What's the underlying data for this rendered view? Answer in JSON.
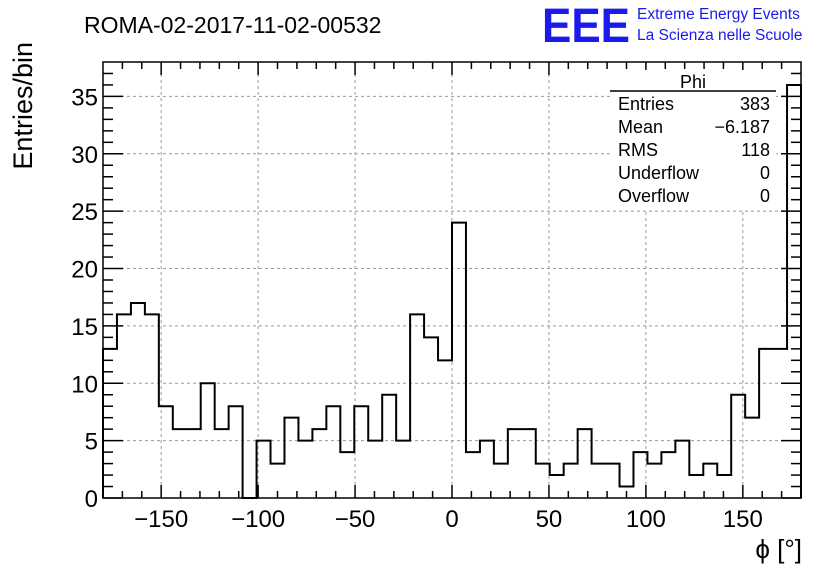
{
  "chart_data": {
    "type": "bar",
    "style": "step-histogram",
    "title": "ROMA-02-2017-11-02-00532",
    "xlabel": "ϕ [°]",
    "ylabel": "Entries/bin",
    "xlim": [
      -180,
      180
    ],
    "ylim": [
      0,
      38
    ],
    "bin_width": 7.2,
    "x_ticks": [
      -150,
      -100,
      -50,
      0,
      50,
      100,
      150
    ],
    "x_tick_labels": [
      "−150",
      "−100",
      "−50",
      "0",
      "50",
      "100",
      "150"
    ],
    "y_ticks": [
      0,
      5,
      10,
      15,
      20,
      25,
      30,
      35
    ],
    "y_tick_labels": [
      "0",
      "5",
      "10",
      "15",
      "20",
      "25",
      "30",
      "35"
    ],
    "grid": true,
    "line_color": "#000000",
    "values": [
      13,
      16,
      17,
      16,
      8,
      6,
      6,
      10,
      6,
      8,
      0,
      5,
      3,
      7,
      5,
      6,
      8,
      4,
      8,
      5,
      9,
      5,
      16,
      14,
      12,
      24,
      4,
      5,
      3,
      6,
      6,
      3,
      2,
      3,
      6,
      3,
      3,
      1,
      4,
      3,
      4,
      5,
      2,
      3,
      2,
      9,
      7,
      13,
      13,
      36
    ]
  },
  "stats_box": {
    "title": "Phi",
    "rows": [
      {
        "label": "Entries",
        "value": "383"
      },
      {
        "label": "Mean",
        "value": "−6.187"
      },
      {
        "label": "RMS",
        "value": "118"
      },
      {
        "label": "Underflow",
        "value": "0"
      },
      {
        "label": "Overflow",
        "value": "0"
      }
    ]
  },
  "logo": {
    "mark": "EEE",
    "line1": "Extreme Energy Events",
    "line2": "La Scienza nelle Scuole",
    "color": "#1a1aee"
  }
}
